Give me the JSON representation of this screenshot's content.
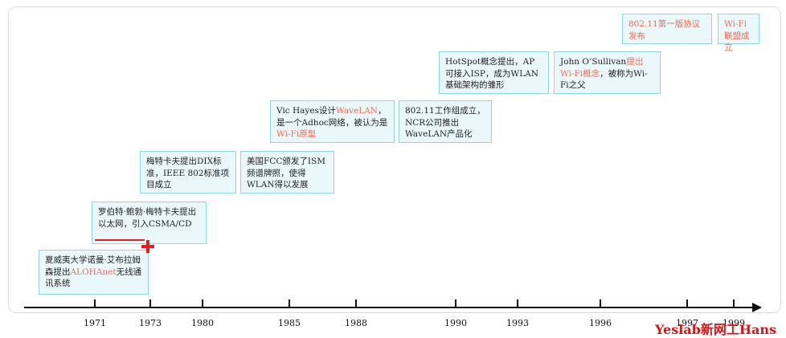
{
  "events": [
    {
      "id": "e1971",
      "parts": [
        {
          "t": "夏威夷大学诺曼·艾布拉姆森提出"
        },
        {
          "t": "ALOHAnet",
          "hl": true
        },
        {
          "t": "无线通讯系统"
        }
      ]
    },
    {
      "id": "e1973",
      "parts": [
        {
          "t": "罗伯特·鲍勃·梅特卡夫提出以太网，引入CSMA/CD"
        }
      ]
    },
    {
      "id": "e1980",
      "parts": [
        {
          "t": "梅特卡夫提出DIX标准，IEEE 802标准项目成立"
        }
      ]
    },
    {
      "id": "e1985a",
      "parts": [
        {
          "t": "美国FCC颁发了ISM频谱牌照，使得WLAN得以发展"
        }
      ]
    },
    {
      "id": "e1985b",
      "parts": [
        {
          "t": "Vic Hayes设计"
        },
        {
          "t": "WaveLAN",
          "hl": true
        },
        {
          "t": "，是一个Adhoc网络，被认为是"
        },
        {
          "t": "Wi-Fi原型",
          "hl": true
        }
      ]
    },
    {
      "id": "e1990",
      "parts": [
        {
          "t": "802.11工作组成立，NCR公司推出WaveLAN产品化"
        }
      ]
    },
    {
      "id": "e1993",
      "parts": [
        {
          "t": "HotSpot概念提出，AP可接入ISP，成为WLAN基础架构的雏形"
        }
      ]
    },
    {
      "id": "e1996",
      "parts": [
        {
          "t": "John O‘Sullivan"
        },
        {
          "t": "提出Wi-Fi概念",
          "hl": true
        },
        {
          "t": "，被称为Wi-Fi之父"
        }
      ]
    },
    {
      "id": "e1997",
      "parts": [
        {
          "t": "802.11第一版协议发布",
          "hl": true
        }
      ]
    },
    {
      "id": "e1999",
      "parts": [
        {
          "t": "Wi-Fi联盟成立",
          "hl": true
        }
      ]
    }
  ],
  "axis": {
    "years": [
      "1971",
      "1973",
      "1980",
      "1985",
      "1988",
      "1990",
      "1993",
      "1996",
      "1997",
      "1999"
    ]
  },
  "colors": {
    "box_bg": "#eaf8fb",
    "box_border": "#8fd5e6",
    "highlight": "#f06a50",
    "marker": "#e02020"
  },
  "watermark": "Yeslab新网工Hans"
}
